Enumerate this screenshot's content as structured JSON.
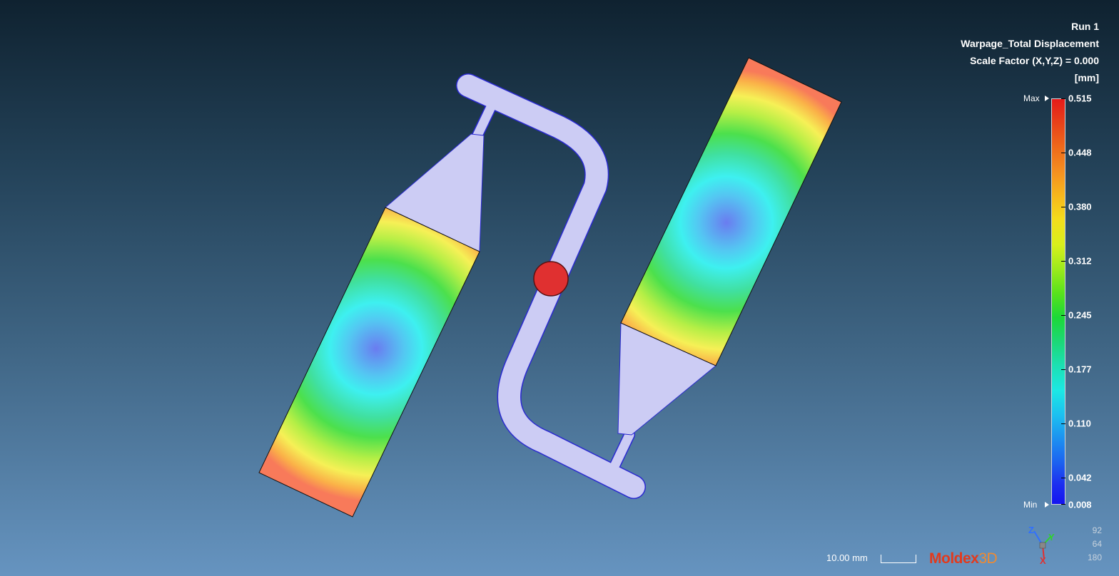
{
  "header": {
    "run": "Run 1",
    "result_name": "Warpage_Total Displacement",
    "scale_factor": "Scale Factor (X,Y,Z) = 0.000",
    "unit": "[mm]"
  },
  "legend": {
    "max_label": "Max",
    "min_label": "Min",
    "ticks": [
      "0.515",
      "0.448",
      "0.380",
      "0.312",
      "0.245",
      "0.177",
      "0.110",
      "0.042",
      "0.008"
    ],
    "colors": [
      "#e51a1a",
      "#f59020",
      "#f3de1c",
      "#58e21c",
      "#1cd878",
      "#1ce8e4",
      "#1c90f0",
      "#1414f0"
    ]
  },
  "scale_bar": {
    "label": "10.00 mm"
  },
  "brand": {
    "part1": "Moldex",
    "part2": "3D"
  },
  "axis_triad": {
    "z": "Z",
    "y": "Y",
    "x": "X"
  },
  "view_angles": [
    "92",
    "64",
    "180"
  ],
  "model": {
    "runner_color": "#ccccf4",
    "gate_marker_color": "#e03030",
    "min_color": "#6a7cf0",
    "max_color": "#f87a5a"
  }
}
